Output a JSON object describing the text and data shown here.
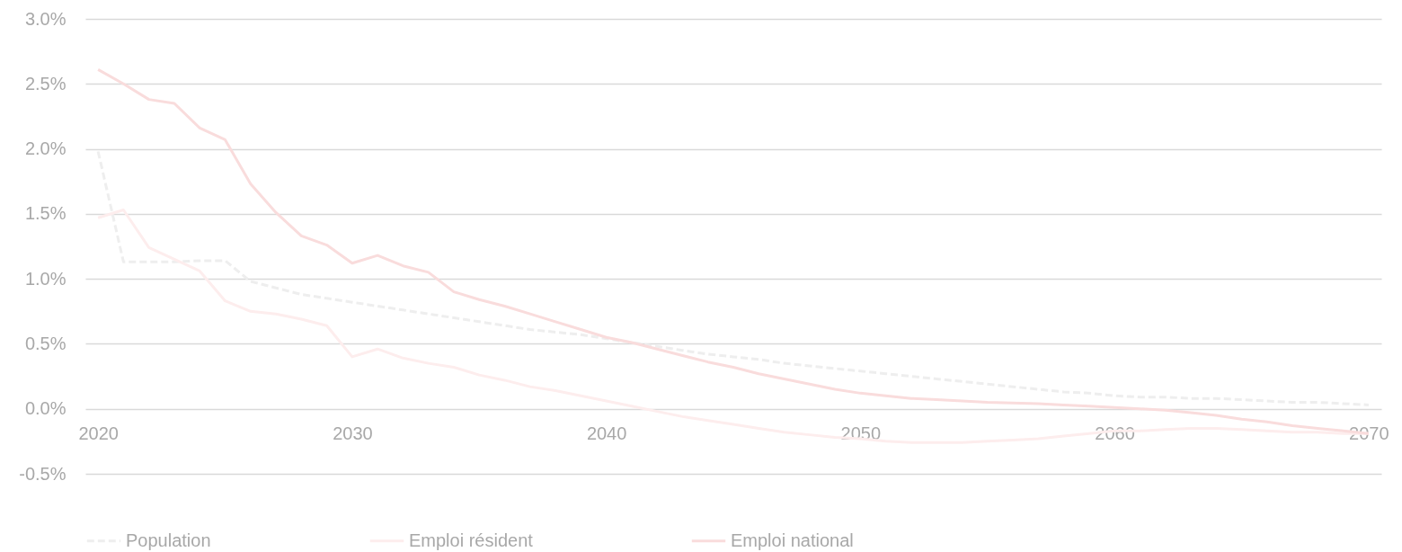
{
  "chart_data": {
    "type": "line",
    "x": [
      2020,
      2021,
      2022,
      2023,
      2024,
      2025,
      2026,
      2027,
      2028,
      2029,
      2030,
      2031,
      2032,
      2033,
      2034,
      2035,
      2036,
      2037,
      2038,
      2039,
      2040,
      2041,
      2042,
      2043,
      2044,
      2045,
      2046,
      2047,
      2048,
      2049,
      2050,
      2051,
      2052,
      2053,
      2054,
      2055,
      2056,
      2057,
      2058,
      2059,
      2060,
      2061,
      2062,
      2063,
      2064,
      2065,
      2066,
      2067,
      2068,
      2069,
      2070
    ],
    "series": [
      {
        "name": "Population",
        "color": "#eeeeee",
        "line_style": "dashed",
        "values": [
          1.98,
          1.13,
          1.13,
          1.13,
          1.14,
          1.14,
          0.98,
          0.93,
          0.88,
          0.85,
          0.82,
          0.79,
          0.76,
          0.73,
          0.7,
          0.67,
          0.64,
          0.61,
          0.59,
          0.57,
          0.54,
          0.51,
          0.48,
          0.45,
          0.42,
          0.4,
          0.38,
          0.35,
          0.33,
          0.31,
          0.29,
          0.27,
          0.25,
          0.23,
          0.21,
          0.19,
          0.17,
          0.15,
          0.13,
          0.12,
          0.1,
          0.09,
          0.09,
          0.08,
          0.08,
          0.07,
          0.06,
          0.05,
          0.05,
          0.04,
          0.03
        ]
      },
      {
        "name": "Emploi résident",
        "color": "#fdeded",
        "line_style": "solid",
        "values": [
          1.47,
          1.53,
          1.24,
          1.15,
          1.06,
          0.83,
          0.75,
          0.73,
          0.69,
          0.64,
          0.4,
          0.46,
          0.39,
          0.35,
          0.32,
          0.26,
          0.22,
          0.17,
          0.14,
          0.1,
          0.06,
          0.02,
          -0.02,
          -0.06,
          -0.09,
          -0.12,
          -0.15,
          -0.18,
          -0.2,
          -0.22,
          -0.23,
          -0.25,
          -0.26,
          -0.26,
          -0.26,
          -0.25,
          -0.24,
          -0.23,
          -0.21,
          -0.19,
          -0.17,
          -0.17,
          -0.16,
          -0.15,
          -0.15,
          -0.16,
          -0.17,
          -0.18,
          -0.18,
          -0.19,
          -0.19
        ]
      },
      {
        "name": "Emploi national",
        "color": "#f9dcdc",
        "line_style": "solid",
        "values": [
          2.61,
          2.5,
          2.38,
          2.35,
          2.16,
          2.07,
          1.73,
          1.51,
          1.33,
          1.26,
          1.12,
          1.18,
          1.1,
          1.05,
          0.9,
          0.84,
          0.79,
          0.73,
          0.67,
          0.61,
          0.55,
          0.51,
          0.46,
          0.41,
          0.36,
          0.32,
          0.27,
          0.23,
          0.19,
          0.15,
          0.12,
          0.1,
          0.08,
          0.07,
          0.06,
          0.05,
          0.045,
          0.04,
          0.03,
          0.02,
          0.01,
          0.0,
          -0.01,
          -0.03,
          -0.05,
          -0.08,
          -0.1,
          -0.13,
          -0.15,
          -0.17,
          -0.19
        ]
      }
    ],
    "xlim": [
      2019.5,
      2070.5
    ],
    "xticks": [
      2020,
      2030,
      2040,
      2050,
      2060,
      2070
    ],
    "ylim": [
      -0.5,
      3.0
    ],
    "yticks": [
      {
        "value": -0.5,
        "label": "-0.5%"
      },
      {
        "value": 0,
        "label": "0.0%"
      },
      {
        "value": 0.5,
        "label": "0.5%"
      },
      {
        "value": 1,
        "label": "1.0%"
      },
      {
        "value": 1.5,
        "label": "1.5%"
      },
      {
        "value": 2,
        "label": "2.0%"
      },
      {
        "value": 2.5,
        "label": "2.5%"
      },
      {
        "value": 3,
        "label": "3.0%"
      }
    ],
    "grid": "y",
    "legend": "bottom"
  }
}
